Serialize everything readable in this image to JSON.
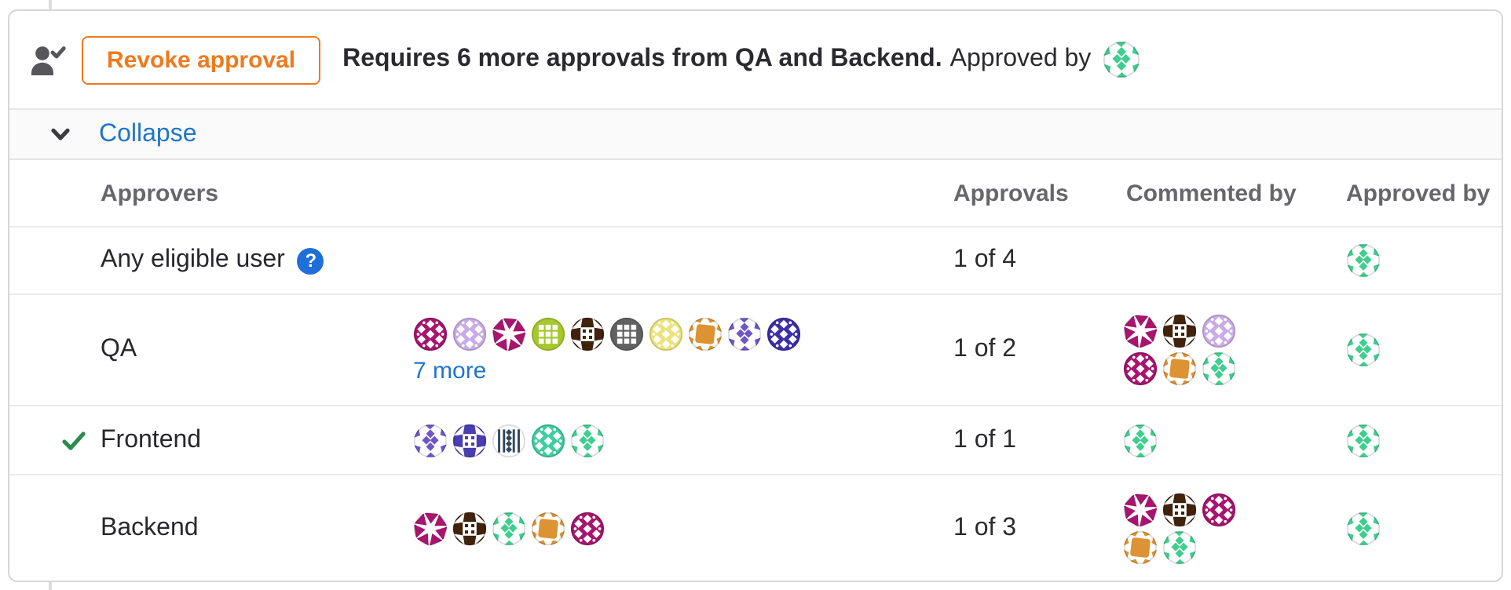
{
  "approval_summary": {
    "revoke_button_label": "Revoke approval",
    "message_bold": "Requires 6 more approvals from QA and Backend.",
    "approved_by_label": "Approved by",
    "approved_by_avatars": [
      "mint"
    ]
  },
  "collapse_bar": {
    "label": "Collapse"
  },
  "approval_rules_table": {
    "headers": {
      "approvers": "Approvers",
      "approvals": "Approvals",
      "commented_by": "Commented by",
      "approved_by": "Approved by"
    },
    "rows": [
      {
        "rule": "Any eligible user",
        "help_icon": true,
        "approved": false,
        "approver_avatars": [],
        "more_link": "",
        "approvals": "1 of 4",
        "commented_by": [],
        "approved_by": [
          "mint"
        ]
      },
      {
        "rule": "QA",
        "help_icon": false,
        "approved": false,
        "approver_avatars": [
          "magenta",
          "lavender",
          "magenta-pin",
          "lime",
          "brown",
          "gray",
          "yellow",
          "orange",
          "purple",
          "indigo"
        ],
        "more_link": "7 more",
        "approvals": "1 of 2",
        "commented_by": [
          "magenta-pin",
          "brown",
          "lavender",
          "magenta",
          "orange",
          "mint"
        ],
        "approved_by": [
          "mint"
        ]
      },
      {
        "rule": "Frontend",
        "help_icon": false,
        "approved": true,
        "approver_avatars": [
          "purple",
          "indigo-mosaic",
          "navy",
          "teal",
          "mint"
        ],
        "more_link": "",
        "approvals": "1 of 1",
        "commented_by": [
          "mint"
        ],
        "approved_by": [
          "mint"
        ]
      },
      {
        "rule": "Backend",
        "help_icon": false,
        "approved": false,
        "approver_avatars": [
          "magenta-pin",
          "brown",
          "mint",
          "orange",
          "magenta"
        ],
        "more_link": "",
        "approvals": "1 of 3",
        "commented_by": [
          "magenta-pin",
          "brown",
          "magenta",
          "orange",
          "mint"
        ],
        "approved_by": [
          "mint"
        ]
      }
    ]
  },
  "avatar_palette": {
    "magenta": {
      "bg": "#a8146e",
      "fg": "#ffffff",
      "t": "dia"
    },
    "lavender": {
      "bg": "#c9abe8",
      "fg": "#ffffff",
      "t": "dia"
    },
    "magenta-pin": {
      "bg": "#ffffff",
      "fg": "#a8146e",
      "t": "pin"
    },
    "lime": {
      "bg": "#a6c82d",
      "fg": "#ffffff",
      "t": "sq"
    },
    "brown": {
      "bg": "#40220d",
      "fg": "#ffffff",
      "t": "mos"
    },
    "gray": {
      "bg": "#616161",
      "fg": "#ffffff",
      "t": "sq"
    },
    "yellow": {
      "bg": "#ece378",
      "fg": "#ffffff",
      "t": "dia"
    },
    "orange": {
      "bg": "#ffffff",
      "fg": "#dd9234",
      "t": "blob"
    },
    "purple": {
      "bg": "#ffffff",
      "fg": "#6e56c9",
      "t": "mint"
    },
    "indigo": {
      "bg": "#3c2fa8",
      "fg": "#ffffff",
      "t": "dia"
    },
    "indigo-mosaic": {
      "bg": "#4a3db0",
      "fg": "#ffffff",
      "t": "mos"
    },
    "navy": {
      "bg": "#ffffff",
      "fg": "#32495f",
      "t": "hat"
    },
    "teal": {
      "bg": "#41cda1",
      "fg": "#ffffff",
      "t": "dia"
    },
    "mint": {
      "bg": "#ffffff",
      "fg": "#3dcf8e",
      "t": "mint"
    }
  },
  "colors": {
    "link_blue": "#1f75cb",
    "revoke_orange": "#ee7a1e",
    "approved_check_green": "#2a8c4f",
    "help_icon_blue": "#1f6fd9"
  }
}
